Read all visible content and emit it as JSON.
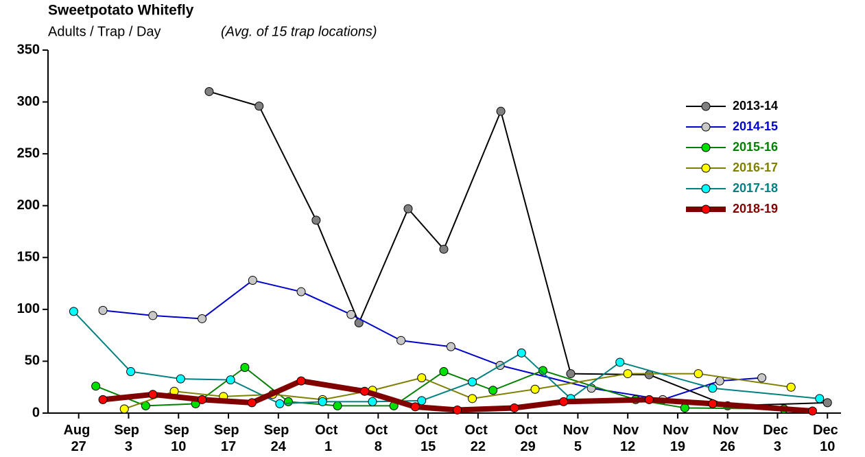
{
  "chart_data": {
    "type": "line",
    "title": "Sweetpotato Whitefly",
    "subtitle": "Adults / Trap / Day",
    "note": "(Avg. of 15 trap locations)",
    "xlim": [
      -4.3,
      106.9
    ],
    "xticks": [
      {
        "value": 0,
        "label": "Aug 27"
      },
      {
        "value": 7,
        "label": "Sep 3"
      },
      {
        "value": 14,
        "label": "Sep 10"
      },
      {
        "value": 21,
        "label": "Sep 17"
      },
      {
        "value": 28,
        "label": "Sep 24"
      },
      {
        "value": 35,
        "label": "Oct 1"
      },
      {
        "value": 42,
        "label": "Oct 8"
      },
      {
        "value": 49,
        "label": "Oct 15"
      },
      {
        "value": 56,
        "label": "Oct 22"
      },
      {
        "value": 63,
        "label": "Oct 29"
      },
      {
        "value": 70,
        "label": "Nov 5"
      },
      {
        "value": 77,
        "label": "Nov 12"
      },
      {
        "value": 84,
        "label": "Nov 19"
      },
      {
        "value": 91,
        "label": "Nov 26"
      },
      {
        "value": 98,
        "label": "Dec 3"
      },
      {
        "value": 105,
        "label": "Dec 10"
      }
    ],
    "ylim": [
      0,
      350
    ],
    "yticks": [
      0,
      50,
      100,
      150,
      200,
      250,
      300,
      350
    ],
    "legend": "upper right",
    "series": [
      {
        "name": "2013-14",
        "color": "#000000",
        "marker_color": "#808080",
        "line_width": 2,
        "x": [
          18.3,
          25.3,
          33.3,
          39.3,
          46.2,
          51.2,
          59.2,
          69,
          80,
          91,
          105
        ],
        "values": [
          310,
          296,
          186,
          87,
          197,
          158,
          291,
          38,
          37,
          7,
          10
        ]
      },
      {
        "name": "2014-15",
        "color": "#0000cc",
        "marker_color": "#c8c8c8",
        "line_width": 2,
        "x": [
          3.4,
          10.4,
          17.3,
          24.4,
          31.2,
          38.2,
          45.2,
          52.2,
          59.1,
          71.9,
          81.9,
          89.9,
          95.8
        ],
        "values": [
          99,
          94,
          91,
          128,
          117,
          95,
          70,
          64,
          46,
          24,
          13,
          31,
          34
        ]
      },
      {
        "name": "2015-16",
        "color": "#008000",
        "marker_color": "#00e000",
        "line_width": 2,
        "x": [
          2.4,
          9.4,
          16.4,
          23.3,
          29.4,
          36.3,
          44.2,
          51.2,
          58.1,
          65.1,
          78.1,
          85,
          98.9
        ],
        "values": [
          26,
          7,
          9,
          44,
          11,
          7,
          7,
          40,
          22,
          41,
          13,
          5,
          4
        ]
      },
      {
        "name": "2016-17",
        "color": "#808000",
        "marker_color": "#ffff00",
        "line_width": 2,
        "x": [
          6.4,
          13.4,
          20.3,
          27.2,
          34.2,
          41.2,
          48.1,
          55.2,
          64,
          77,
          86.9,
          99.9
        ],
        "values": [
          4,
          21,
          16,
          18,
          13,
          22,
          34,
          14,
          23,
          38,
          38,
          25
        ]
      },
      {
        "name": "2017-18",
        "color": "#008080",
        "marker_color": "#00ffff",
        "line_width": 2,
        "x": [
          -0.7,
          7.3,
          14.3,
          21.3,
          28.2,
          34.2,
          41.2,
          48.1,
          55.2,
          62.1,
          69,
          75.9,
          88.9,
          103.9
        ],
        "values": [
          98,
          40,
          33,
          32,
          9,
          11,
          11,
          12,
          30,
          58,
          14,
          49,
          24,
          14
        ]
      },
      {
        "name": "2018-19",
        "color": "#800000",
        "marker_color": "#ff0000",
        "line_width": 8,
        "x": [
          3.4,
          10.4,
          17.3,
          24.3,
          31.2,
          40.1,
          47.2,
          53.1,
          61.1,
          68,
          80,
          88.9,
          102.9
        ],
        "values": [
          13,
          18,
          13,
          10,
          31,
          21,
          6,
          3,
          5,
          11,
          13,
          9,
          2
        ]
      }
    ]
  }
}
